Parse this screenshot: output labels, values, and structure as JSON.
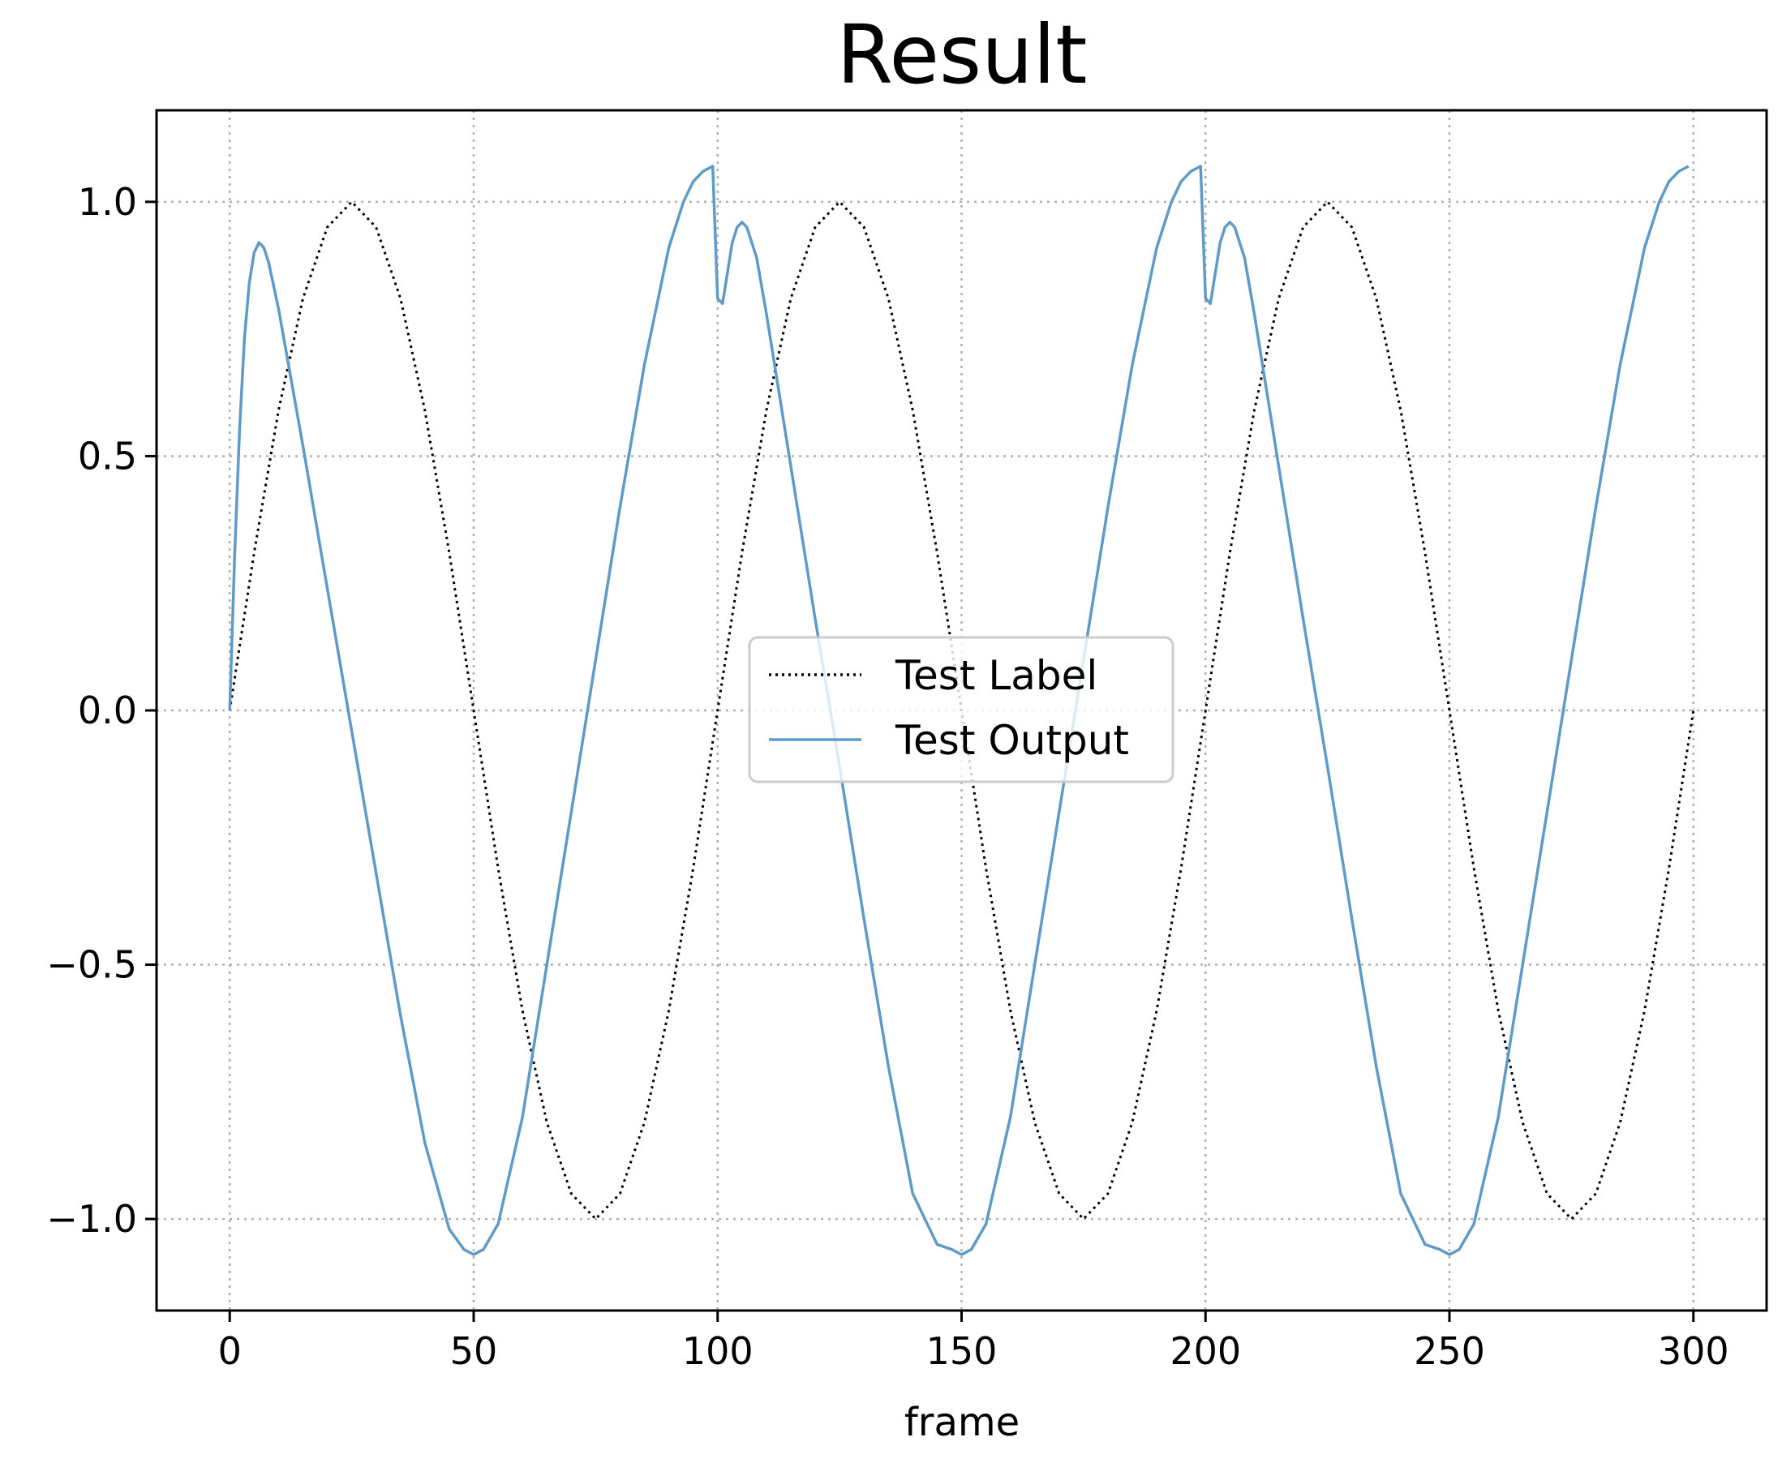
{
  "chart_data": {
    "type": "line",
    "title": "Result",
    "xlabel": "frame",
    "ylabel": "",
    "xlim": [
      -15,
      315
    ],
    "ylim": [
      -1.18,
      1.18
    ],
    "xticks": [
      0,
      50,
      100,
      150,
      200,
      250,
      300
    ],
    "xtick_labels": [
      "0",
      "50",
      "100",
      "150",
      "200",
      "250",
      "300"
    ],
    "yticks": [
      1.0,
      0.5,
      0.0,
      -0.5,
      -1.0
    ],
    "ytick_labels": [
      "1.0",
      "0.5",
      "0.0",
      "−0.5",
      "−1.0"
    ],
    "grid": true,
    "legend_position": "center",
    "series": [
      {
        "name": "Test Label",
        "color": "#000000",
        "style": "dotted",
        "x": [
          0,
          5,
          10,
          15,
          20,
          25,
          30,
          35,
          40,
          45,
          50,
          55,
          60,
          65,
          70,
          75,
          80,
          85,
          90,
          95,
          100,
          105,
          110,
          115,
          120,
          125,
          130,
          135,
          140,
          145,
          150,
          155,
          160,
          165,
          170,
          175,
          180,
          185,
          190,
          195,
          200,
          205,
          210,
          215,
          220,
          225,
          230,
          235,
          240,
          245,
          250,
          255,
          260,
          265,
          270,
          275,
          280,
          285,
          290,
          295,
          300
        ],
        "y": [
          0.0,
          0.31,
          0.59,
          0.81,
          0.95,
          1.0,
          0.95,
          0.81,
          0.59,
          0.31,
          0.0,
          -0.31,
          -0.59,
          -0.81,
          -0.95,
          -1.0,
          -0.95,
          -0.81,
          -0.59,
          -0.31,
          0.0,
          0.31,
          0.59,
          0.81,
          0.95,
          1.0,
          0.95,
          0.81,
          0.59,
          0.31,
          0.0,
          -0.31,
          -0.59,
          -0.81,
          -0.95,
          -1.0,
          -0.95,
          -0.81,
          -0.59,
          -0.31,
          0.0,
          0.31,
          0.59,
          0.81,
          0.95,
          1.0,
          0.95,
          0.81,
          0.59,
          0.31,
          0.0,
          -0.31,
          -0.59,
          -0.81,
          -0.95,
          -1.0,
          -0.95,
          -0.81,
          -0.59,
          -0.31,
          0.0
        ]
      },
      {
        "name": "Test Output",
        "color": "#5f9bc6",
        "style": "solid",
        "x": [
          0,
          1,
          2,
          3,
          4,
          5,
          6,
          7,
          8,
          10,
          15,
          20,
          25,
          30,
          35,
          40,
          45,
          48,
          50,
          52,
          55,
          60,
          65,
          70,
          75,
          80,
          85,
          90,
          93,
          95,
          97,
          99,
          100,
          101,
          102,
          103,
          104,
          105,
          106,
          108,
          110,
          115,
          120,
          125,
          130,
          135,
          140,
          145,
          148,
          150,
          152,
          155,
          160,
          165,
          170,
          175,
          180,
          185,
          190,
          193,
          195,
          197,
          199,
          200,
          201,
          202,
          203,
          204,
          205,
          206,
          208,
          210,
          215,
          220,
          225,
          230,
          235,
          240,
          245,
          248,
          250,
          252,
          255,
          260,
          265,
          270,
          275,
          280,
          285,
          290,
          293,
          295,
          297,
          299
        ],
        "y": [
          0.0,
          0.3,
          0.55,
          0.73,
          0.84,
          0.9,
          0.92,
          0.91,
          0.88,
          0.79,
          0.52,
          0.24,
          -0.04,
          -0.32,
          -0.6,
          -0.85,
          -1.02,
          -1.06,
          -1.07,
          -1.06,
          -1.01,
          -0.8,
          -0.5,
          -0.2,
          0.1,
          0.4,
          0.68,
          0.91,
          1.0,
          1.04,
          1.06,
          1.07,
          0.81,
          0.8,
          0.86,
          0.92,
          0.95,
          0.96,
          0.95,
          0.89,
          0.78,
          0.48,
          0.18,
          -0.11,
          -0.41,
          -0.7,
          -0.95,
          -1.05,
          -1.06,
          -1.07,
          -1.06,
          -1.01,
          -0.8,
          -0.5,
          -0.2,
          0.1,
          0.4,
          0.68,
          0.91,
          1.0,
          1.04,
          1.06,
          1.07,
          0.81,
          0.8,
          0.86,
          0.92,
          0.95,
          0.96,
          0.95,
          0.89,
          0.78,
          0.48,
          0.18,
          -0.11,
          -0.41,
          -0.7,
          -0.95,
          -1.05,
          -1.06,
          -1.07,
          -1.06,
          -1.01,
          -0.8,
          -0.5,
          -0.2,
          0.1,
          0.4,
          0.68,
          0.91,
          1.0,
          1.04,
          1.06,
          1.07
        ]
      }
    ]
  }
}
